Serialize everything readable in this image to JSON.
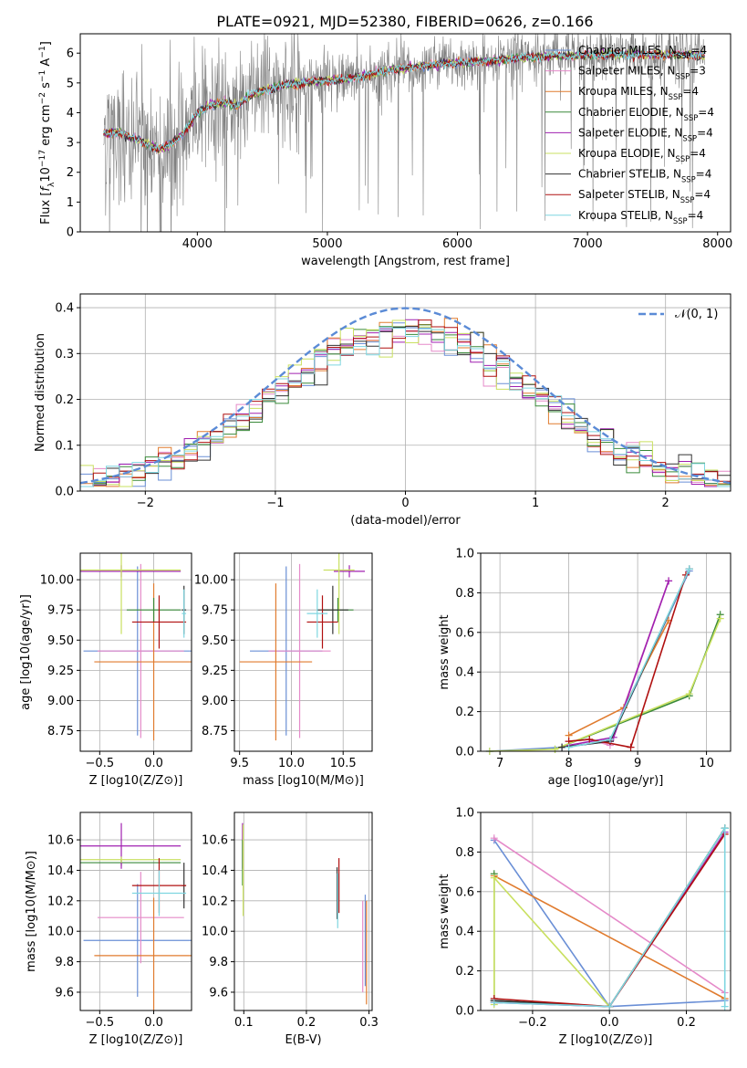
{
  "figure_title": "PLATE=0921, MJD=52380, FIBERID=0626, z=0.166",
  "colors": {
    "chabrier_miles": "#6a8fd6",
    "salpeter_miles": "#e58ac9",
    "kroupa_miles": "#e07b2e",
    "chabrier_elodie": "#3a8a3a",
    "salpeter_elodie": "#a020b0",
    "kroupa_elodie": "#c9e060",
    "chabrier_stelib": "#333333",
    "salpeter_stelib": "#b01010",
    "kroupa_stelib": "#7fd6e0",
    "data": "#808080",
    "gaussian": "#5b8bd6"
  },
  "chart_data": [
    {
      "id": "spectrum",
      "type": "line",
      "title": "PLATE=0921, MJD=52380, FIBERID=0626, z=0.166",
      "xlabel": "wavelength [Angstrom, rest frame]",
      "ylabel": "Flux [f_λ 10^-17 erg cm^-2 s^-1 A^-1]",
      "xlim": [
        3100,
        8100
      ],
      "ylim": [
        0,
        6.65
      ],
      "xticks": [
        "4000",
        "5000",
        "6000",
        "7000",
        "8000"
      ],
      "yticks": [
        "0",
        "1",
        "2",
        "3",
        "4",
        "5",
        "6"
      ],
      "grid": false,
      "legend_position": "top-right",
      "legend": [
        "Chabrier MILES, N_SSP=4",
        "Salpeter MILES, N_SSP=3",
        "Kroupa MILES, N_SSP=4",
        "Chabrier ELODIE, N_SSP=4",
        "Salpeter ELODIE, N_SSP=4",
        "Kroupa ELODIE, N_SSP=4",
        "Chabrier STELIB, N_SSP=4",
        "Salpeter STELIB, N_SSP=4",
        "Kroupa STELIB, N_SSP=4"
      ],
      "continuum_nodes": [
        [
          3280,
          3.3
        ],
        [
          3400,
          3.35
        ],
        [
          3500,
          3.15
        ],
        [
          3600,
          3.0
        ],
        [
          3700,
          2.75
        ],
        [
          3800,
          2.95
        ],
        [
          3900,
          3.35
        ],
        [
          4000,
          4.0
        ],
        [
          4100,
          4.25
        ],
        [
          4200,
          4.35
        ],
        [
          4300,
          4.25
        ],
        [
          4400,
          4.55
        ],
        [
          4500,
          4.75
        ],
        [
          4700,
          4.95
        ],
        [
          4900,
          5.05
        ],
        [
          5100,
          5.1
        ],
        [
          5300,
          5.25
        ],
        [
          5500,
          5.45
        ],
        [
          5700,
          5.55
        ],
        [
          5900,
          5.65
        ],
        [
          6100,
          5.7
        ],
        [
          6300,
          5.75
        ],
        [
          6500,
          5.85
        ],
        [
          6800,
          5.9
        ],
        [
          7100,
          5.95
        ],
        [
          7400,
          5.95
        ],
        [
          7700,
          5.95
        ],
        [
          7900,
          5.9
        ]
      ]
    },
    {
      "id": "residuals",
      "type": "histogram",
      "xlabel": "(data-model)/error",
      "ylabel": "Normed distribution",
      "xlim": [
        -2.5,
        2.5
      ],
      "ylim": [
        0,
        0.43
      ],
      "xticks": [
        "−2",
        "−1",
        "0",
        "1",
        "2"
      ],
      "yticks": [
        "0.0",
        "0.1",
        "0.2",
        "0.3",
        "0.4"
      ],
      "grid": true,
      "legend_position": "top-right",
      "legend": [
        "𝒩(0, 1)"
      ],
      "bin_width": 0.1,
      "gaussian": {
        "mu": 0,
        "sigma": 1
      }
    },
    {
      "id": "age_vs_Z",
      "type": "errorbar",
      "xlabel": "Z [log10(Z/Z⊙)]",
      "ylabel": "age  [log10(age/yr)]",
      "xlim": [
        -0.68,
        0.35
      ],
      "ylim": [
        8.58,
        10.22
      ],
      "xticks": [
        "−0.5",
        "0.0"
      ],
      "yticks": [
        "8.75",
        "9.00",
        "9.25",
        "9.50",
        "9.75",
        "10.00"
      ],
      "grid": true,
      "points": [
        {
          "model": "chabrier_miles",
          "x": -0.15,
          "xerr": 0.5,
          "y": 9.41,
          "yerr": 0.7
        },
        {
          "model": "salpeter_miles",
          "x": -0.12,
          "xerr": 0.4,
          "y": 9.41,
          "yerr": 0.72
        },
        {
          "model": "kroupa_miles",
          "x": 0.0,
          "xerr": 0.55,
          "y": 9.32,
          "yerr": 0.65
        },
        {
          "model": "chabrier_elodie",
          "x": 0.0,
          "xerr": 0.25,
          "y": 9.75,
          "yerr": 0.1
        },
        {
          "model": "salpeter_elodie",
          "x": -0.3,
          "xerr": 0.55,
          "y": 10.07,
          "yerr": 0.05
        },
        {
          "model": "kroupa_elodie",
          "x": -0.3,
          "xerr": 0.55,
          "y": 10.08,
          "yerr": 0.53
        },
        {
          "model": "chabrier_stelib",
          "x": 0.28,
          "xerr": 0.02,
          "y": 9.75,
          "yerr": 0.2
        },
        {
          "model": "salpeter_stelib",
          "x": 0.05,
          "xerr": 0.25,
          "y": 9.65,
          "yerr": 0.22
        },
        {
          "model": "kroupa_stelib",
          "x": 0.28,
          "xerr": 0.02,
          "y": 9.72,
          "yerr": 0.2
        }
      ]
    },
    {
      "id": "age_vs_mass",
      "type": "errorbar",
      "xlabel": "mass [log10(M/M⊙)]",
      "ylabel": "",
      "xlim": [
        9.45,
        10.78
      ],
      "ylim": [
        8.58,
        10.22
      ],
      "xticks": [
        "9.5",
        "10.0",
        "10.5"
      ],
      "yticks": [
        "8.75",
        "9.00",
        "9.25",
        "9.50",
        "9.75",
        "10.00"
      ],
      "grid": true,
      "points": [
        {
          "model": "chabrier_miles",
          "x": 9.95,
          "xerr": 0.35,
          "y": 9.41,
          "yerr": 0.7
        },
        {
          "model": "salpeter_miles",
          "x": 10.08,
          "xerr": 0.3,
          "y": 9.41,
          "yerr": 0.72
        },
        {
          "model": "kroupa_miles",
          "x": 9.85,
          "xerr": 0.35,
          "y": 9.32,
          "yerr": 0.65
        },
        {
          "model": "chabrier_elodie",
          "x": 10.45,
          "xerr": 0.15,
          "y": 9.75,
          "yerr": 0.1
        },
        {
          "model": "salpeter_elodie",
          "x": 10.56,
          "xerr": 0.15,
          "y": 10.07,
          "yerr": 0.05
        },
        {
          "model": "kroupa_elodie",
          "x": 10.46,
          "xerr": 0.15,
          "y": 10.08,
          "yerr": 0.53
        },
        {
          "model": "chabrier_stelib",
          "x": 10.4,
          "xerr": 0.15,
          "y": 9.75,
          "yerr": 0.2
        },
        {
          "model": "salpeter_stelib",
          "x": 10.3,
          "xerr": 0.15,
          "y": 9.65,
          "yerr": 0.22
        },
        {
          "model": "kroupa_stelib",
          "x": 10.25,
          "xerr": 0.1,
          "y": 9.72,
          "yerr": 0.2
        }
      ]
    },
    {
      "id": "mass_weight_vs_age",
      "type": "line",
      "xlabel": "age  [log10(age/yr)]",
      "ylabel": "mass weight",
      "xlim": [
        6.72,
        10.35
      ],
      "ylim": [
        0,
        1.0
      ],
      "xticks": [
        "7",
        "8",
        "9",
        "10"
      ],
      "yticks": [
        "0.0",
        "0.2",
        "0.4",
        "0.6",
        "0.8",
        "1.0"
      ],
      "grid": true,
      "series": [
        {
          "model": "chabrier_miles",
          "x": [
            6.85,
            7.9,
            8.6,
            9.75
          ],
          "y": [
            0.0,
            0.02,
            0.05,
            0.91
          ]
        },
        {
          "model": "salpeter_miles",
          "x": [
            8.0,
            8.3,
            8.6,
            9.45
          ],
          "y": [
            0.05,
            0.06,
            0.03,
            0.86
          ]
        },
        {
          "model": "kroupa_miles",
          "x": [
            8.0,
            8.8,
            9.45
          ],
          "y": [
            0.08,
            0.22,
            0.66
          ]
        },
        {
          "model": "chabrier_elodie",
          "x": [
            7.8,
            9.75,
            10.2
          ],
          "y": [
            0.01,
            0.28,
            0.69
          ]
        },
        {
          "model": "salpeter_elodie",
          "x": [
            8.0,
            8.65,
            9.45
          ],
          "y": [
            0.03,
            0.07,
            0.86
          ]
        },
        {
          "model": "kroupa_elodie",
          "x": [
            6.85,
            7.8,
            9.75,
            10.2
          ],
          "y": [
            0.0,
            0.01,
            0.29,
            0.67
          ]
        },
        {
          "model": "chabrier_stelib",
          "x": [
            7.9,
            8.6,
            9.75
          ],
          "y": [
            0.02,
            0.05,
            0.92
          ]
        },
        {
          "model": "salpeter_stelib",
          "x": [
            8.0,
            8.3,
            8.9,
            9.7
          ],
          "y": [
            0.05,
            0.06,
            0.02,
            0.89
          ]
        },
        {
          "model": "kroupa_stelib",
          "x": [
            8.0,
            8.6,
            9.75
          ],
          "y": [
            0.02,
            0.06,
            0.92
          ]
        }
      ]
    },
    {
      "id": "mass_vs_Z",
      "type": "errorbar",
      "xlabel": "Z [log10(Z/Z⊙)]",
      "ylabel": "mass [log10(M/M⊙)]",
      "xlim": [
        -0.68,
        0.35
      ],
      "ylim": [
        9.48,
        10.78
      ],
      "xticks": [
        "−0.5",
        "0.0"
      ],
      "yticks": [
        "9.6",
        "9.8",
        "10.0",
        "10.2",
        "10.4",
        "10.6"
      ],
      "grid": true,
      "points": [
        {
          "model": "chabrier_miles",
          "x": -0.15,
          "xerr": 0.5,
          "y": 9.94,
          "yerr": 0.37
        },
        {
          "model": "salpeter_miles",
          "x": -0.12,
          "xerr": 0.4,
          "y": 10.09,
          "yerr": 0.3
        },
        {
          "model": "kroupa_miles",
          "x": 0.0,
          "xerr": 0.55,
          "y": 9.84,
          "yerr": 0.38
        },
        {
          "model": "chabrier_elodie",
          "x": -0.3,
          "xerr": 0.55,
          "y": 10.45,
          "yerr": 0.02
        },
        {
          "model": "salpeter_elodie",
          "x": -0.3,
          "xerr": 0.55,
          "y": 10.56,
          "yerr": 0.15
        },
        {
          "model": "kroupa_elodie",
          "x": -0.3,
          "xerr": 0.55,
          "y": 10.47,
          "yerr": 0.02
        },
        {
          "model": "chabrier_stelib",
          "x": 0.28,
          "xerr": 0.02,
          "y": 10.3,
          "yerr": 0.15
        },
        {
          "model": "salpeter_stelib",
          "x": 0.05,
          "xerr": 0.25,
          "y": 10.3,
          "yerr": 0.18
        },
        {
          "model": "kroupa_stelib",
          "x": 0.05,
          "xerr": 0.25,
          "y": 10.25,
          "yerr": 0.15
        }
      ]
    },
    {
      "id": "mass_vs_ebv",
      "type": "errorbar",
      "xlabel": "E(B-V)",
      "ylabel": "",
      "xlim": [
        0.085,
        0.305
      ],
      "ylim": [
        9.48,
        10.78
      ],
      "xticks": [
        "0.1",
        "0.2",
        "0.3"
      ],
      "yticks": [
        "9.6",
        "9.8",
        "10.0",
        "10.2",
        "10.4",
        "10.6"
      ],
      "grid": true,
      "points": [
        {
          "model": "salpeter_elodie",
          "x": 0.098,
          "xerr": 0,
          "y": 10.56,
          "yerr": 0.15
        },
        {
          "model": "chabrier_elodie",
          "x": 0.098,
          "xerr": 0,
          "y": 10.45,
          "yerr": 0.15
        },
        {
          "model": "kroupa_elodie",
          "x": 0.099,
          "xerr": 0,
          "y": 10.4,
          "yerr": 0.3
        },
        {
          "model": "chabrier_stelib",
          "x": 0.249,
          "xerr": 0,
          "y": 10.25,
          "yerr": 0.17
        },
        {
          "model": "salpeter_stelib",
          "x": 0.252,
          "xerr": 0,
          "y": 10.3,
          "yerr": 0.18
        },
        {
          "model": "kroupa_stelib",
          "x": 0.25,
          "xerr": 0,
          "y": 10.2,
          "yerr": 0.18
        },
        {
          "model": "chabrier_miles",
          "x": 0.294,
          "xerr": 0,
          "y": 9.94,
          "yerr": 0.3
        },
        {
          "model": "salpeter_miles",
          "x": 0.29,
          "xerr": 0,
          "y": 9.9,
          "yerr": 0.3
        },
        {
          "model": "kroupa_miles",
          "x": 0.296,
          "xerr": 0,
          "y": 9.86,
          "yerr": 0.34
        }
      ]
    },
    {
      "id": "mass_weight_vs_Z",
      "type": "line",
      "xlabel": "Z [log10(Z/Z⊙)]",
      "ylabel": "mass weight",
      "xlim": [
        -0.335,
        0.315
      ],
      "ylim": [
        0,
        1.0
      ],
      "xticks": [
        "−0.2",
        "0.0",
        "0.2"
      ],
      "yticks": [
        "0.0",
        "0.2",
        "0.4",
        "0.6",
        "0.8",
        "1.0"
      ],
      "grid": true,
      "series": [
        {
          "model": "chabrier_miles",
          "x": [
            -0.3,
            0.0,
            0.3
          ],
          "y": [
            0.86,
            0.02,
            0.05
          ]
        },
        {
          "model": "salpeter_miles",
          "x": [
            -0.3,
            0.3
          ],
          "y": [
            0.87,
            0.09
          ]
        },
        {
          "model": "kroupa_miles",
          "x": [
            -0.3,
            0.3
          ],
          "y": [
            0.68,
            0.06
          ]
        },
        {
          "model": "chabrier_elodie",
          "x": [
            -0.3,
            -0.3,
            0.0,
            0.3
          ],
          "y": [
            0.69,
            0.05,
            0.02,
            0.92
          ]
        },
        {
          "model": "salpeter_elodie",
          "x": [
            -0.3,
            0.0,
            0.3
          ],
          "y": [
            0.04,
            0.02,
            0.9
          ]
        },
        {
          "model": "kroupa_elodie",
          "x": [
            -0.3,
            -0.3,
            0.0
          ],
          "y": [
            0.03,
            0.67,
            0.02
          ]
        },
        {
          "model": "chabrier_stelib",
          "x": [
            -0.3,
            0.0,
            0.3
          ],
          "y": [
            0.05,
            0.02,
            0.92
          ]
        },
        {
          "model": "salpeter_stelib",
          "x": [
            -0.3,
            0.0,
            0.3
          ],
          "y": [
            0.06,
            0.02,
            0.89
          ]
        },
        {
          "model": "kroupa_stelib",
          "x": [
            -0.3,
            0.0,
            0.3,
            0.3
          ],
          "y": [
            0.04,
            0.02,
            0.92,
            0.02
          ]
        }
      ]
    }
  ]
}
